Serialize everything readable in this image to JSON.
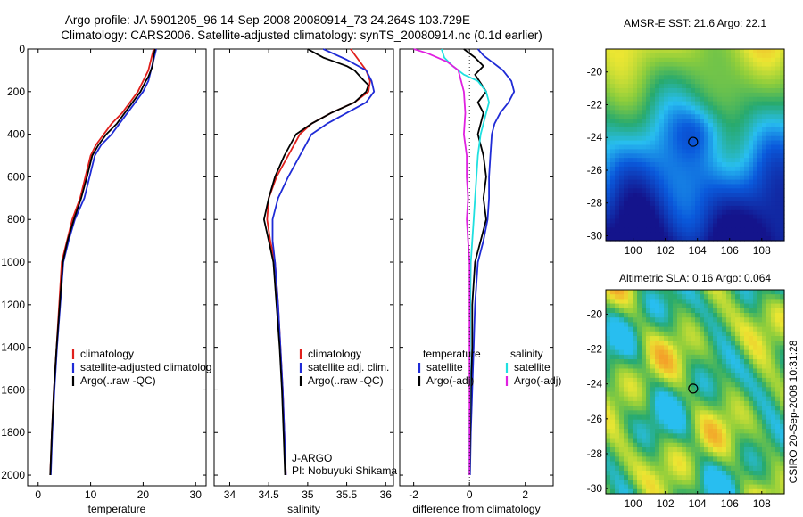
{
  "title": {
    "line1": "Argo profile: JA 5901205_96 14-Sep-2008 20080914_73 24.264S 103.729E",
    "line2": "Climatology: CARS2006. Satellite-adjusted climatology: synTS_20080914.nc (0.1d earlier)"
  },
  "side_label": "CSIRO 20-Sep-2008 10:31:28",
  "chart_data": [
    {
      "id": "temperature",
      "type": "line",
      "xlabel": "temperature",
      "ylabel": "",
      "xlim": [
        -2,
        32
      ],
      "ylim": [
        2050,
        0
      ],
      "xticks": [
        0,
        10,
        20,
        30
      ],
      "yticks": [
        0,
        200,
        400,
        600,
        800,
        1000,
        1200,
        1400,
        1600,
        1800,
        2000
      ],
      "legend": [
        "climatology",
        "satellite-adjusted climatolog",
        "Argo(..raw -QC)"
      ],
      "legend_colors": [
        "#e0201c",
        "#1f2bd6",
        "#000000"
      ],
      "series": [
        {
          "color": "#e0201c",
          "points": [
            [
              22,
              0
            ],
            [
              21.5,
              50
            ],
            [
              21,
              100
            ],
            [
              20,
              150
            ],
            [
              19,
              200
            ],
            [
              17.5,
              250
            ],
            [
              16,
              300
            ],
            [
              14,
              350
            ],
            [
              12.5,
              400
            ],
            [
              11,
              450
            ],
            [
              10,
              500
            ],
            [
              9,
              600
            ],
            [
              8,
              700
            ],
            [
              6.5,
              800
            ],
            [
              5.5,
              900
            ],
            [
              4.5,
              1000
            ],
            [
              4,
              1200
            ],
            [
              3.5,
              1400
            ],
            [
              3,
              1600
            ],
            [
              2.6,
              1800
            ],
            [
              2.3,
              2000
            ]
          ]
        },
        {
          "color": "#1f2bd6",
          "points": [
            [
              22.5,
              0
            ],
            [
              22,
              50
            ],
            [
              21.5,
              100
            ],
            [
              21,
              150
            ],
            [
              20,
              200
            ],
            [
              18.5,
              250
            ],
            [
              17,
              300
            ],
            [
              15.5,
              350
            ],
            [
              14,
              400
            ],
            [
              12,
              450
            ],
            [
              10.8,
              500
            ],
            [
              9.8,
              600
            ],
            [
              8.8,
              700
            ],
            [
              7,
              800
            ],
            [
              5.8,
              900
            ],
            [
              4.8,
              1000
            ],
            [
              4.2,
              1200
            ],
            [
              3.6,
              1400
            ],
            [
              3.1,
              1600
            ],
            [
              2.7,
              1800
            ],
            [
              2.4,
              2000
            ]
          ]
        },
        {
          "color": "#000000",
          "points": [
            [
              22.3,
              0
            ],
            [
              22,
              30
            ],
            [
              21.8,
              80
            ],
            [
              21,
              130
            ],
            [
              20.5,
              150
            ],
            [
              19.5,
              200
            ],
            [
              18,
              250
            ],
            [
              16.5,
              300
            ],
            [
              15,
              350
            ],
            [
              13,
              400
            ],
            [
              11.5,
              450
            ],
            [
              10.3,
              500
            ],
            [
              9.3,
              600
            ],
            [
              8.2,
              700
            ],
            [
              6.8,
              800
            ],
            [
              5.6,
              900
            ],
            [
              4.7,
              1000
            ],
            [
              4.1,
              1200
            ],
            [
              3.5,
              1400
            ],
            [
              3,
              1600
            ],
            [
              2.6,
              1800
            ],
            [
              2.3,
              2000
            ]
          ]
        }
      ]
    },
    {
      "id": "salinity",
      "type": "line",
      "xlabel": "salinity",
      "ylabel": "",
      "xlim": [
        33.8,
        36.1
      ],
      "ylim": [
        2050,
        0
      ],
      "xticks": [
        34,
        34.5,
        35,
        35.5,
        36
      ],
      "yticks": [
        0,
        200,
        400,
        600,
        800,
        1000,
        1200,
        1400,
        1600,
        1800,
        2000
      ],
      "legend": [
        "climatology",
        "satellite adj. clim.",
        "Argo(..raw -QC)"
      ],
      "legend_colors": [
        "#e0201c",
        "#1f2bd6",
        "#000000"
      ],
      "annotation": [
        "J-ARGO",
        "PI: Nobuyuki Shikama"
      ],
      "series": [
        {
          "color": "#e0201c",
          "points": [
            [
              35.55,
              0
            ],
            [
              35.65,
              50
            ],
            [
              35.75,
              100
            ],
            [
              35.8,
              150
            ],
            [
              35.78,
              200
            ],
            [
              35.6,
              250
            ],
            [
              35.3,
              300
            ],
            [
              35.05,
              350
            ],
            [
              34.9,
              400
            ],
            [
              34.75,
              500
            ],
            [
              34.6,
              600
            ],
            [
              34.5,
              700
            ],
            [
              34.48,
              800
            ],
            [
              34.52,
              900
            ],
            [
              34.58,
              1000
            ],
            [
              34.62,
              1200
            ],
            [
              34.65,
              1400
            ],
            [
              34.68,
              1600
            ],
            [
              34.7,
              1800
            ],
            [
              34.72,
              2000
            ]
          ]
        },
        {
          "color": "#1f2bd6",
          "points": [
            [
              35.2,
              0
            ],
            [
              35.5,
              50
            ],
            [
              35.75,
              100
            ],
            [
              35.82,
              150
            ],
            [
              35.85,
              200
            ],
            [
              35.75,
              250
            ],
            [
              35.5,
              300
            ],
            [
              35.25,
              350
            ],
            [
              35.05,
              400
            ],
            [
              34.9,
              500
            ],
            [
              34.75,
              600
            ],
            [
              34.62,
              700
            ],
            [
              34.55,
              800
            ],
            [
              34.55,
              900
            ],
            [
              34.58,
              1000
            ],
            [
              34.62,
              1200
            ],
            [
              34.65,
              1400
            ],
            [
              34.68,
              1600
            ],
            [
              34.7,
              1800
            ],
            [
              34.72,
              2000
            ]
          ]
        },
        {
          "color": "#000000",
          "points": [
            [
              35.0,
              0
            ],
            [
              35.1,
              20
            ],
            [
              35.2,
              40
            ],
            [
              35.35,
              60
            ],
            [
              35.5,
              80
            ],
            [
              35.6,
              100
            ],
            [
              35.7,
              140
            ],
            [
              35.78,
              170
            ],
            [
              35.75,
              200
            ],
            [
              35.6,
              250
            ],
            [
              35.3,
              300
            ],
            [
              35.05,
              350
            ],
            [
              34.85,
              400
            ],
            [
              34.7,
              500
            ],
            [
              34.58,
              600
            ],
            [
              34.5,
              700
            ],
            [
              34.44,
              800
            ],
            [
              34.5,
              900
            ],
            [
              34.56,
              1000
            ],
            [
              34.6,
              1200
            ],
            [
              34.64,
              1400
            ],
            [
              34.67,
              1600
            ],
            [
              34.69,
              1800
            ],
            [
              34.71,
              2000
            ]
          ]
        }
      ]
    },
    {
      "id": "difference",
      "type": "line",
      "xlabel": "difference from climatology",
      "ylabel": "",
      "xlim": [
        -2.5,
        3
      ],
      "ylim": [
        2050,
        0
      ],
      "xticks": [
        -2,
        0,
        2
      ],
      "yticks": [
        0,
        200,
        400,
        600,
        800,
        1000,
        1200,
        1400,
        1600,
        1800,
        2000
      ],
      "legend": [
        "temperature",
        "satellite",
        "Argo(-adj)",
        "salinity",
        "satellite",
        "Argo(-adj)"
      ],
      "legend_colors": [
        "",
        "#1f2bd6",
        "#000000",
        "",
        "#1fe0e0",
        "#e020e0"
      ],
      "series": [
        {
          "color": "#1f2bd6",
          "points": [
            [
              0.3,
              0
            ],
            [
              0.5,
              30
            ],
            [
              0.8,
              60
            ],
            [
              1.2,
              100
            ],
            [
              1.5,
              150
            ],
            [
              1.6,
              200
            ],
            [
              1.4,
              250
            ],
            [
              1.1,
              300
            ],
            [
              0.9,
              350
            ],
            [
              0.8,
              400
            ],
            [
              0.75,
              500
            ],
            [
              0.7,
              600
            ],
            [
              0.7,
              700
            ],
            [
              0.65,
              800
            ],
            [
              0.5,
              900
            ],
            [
              0.3,
              1000
            ],
            [
              0.2,
              1200
            ],
            [
              0.15,
              1400
            ],
            [
              0.1,
              1600
            ],
            [
              0.05,
              1800
            ],
            [
              0.02,
              2000
            ]
          ]
        },
        {
          "color": "#000000",
          "points": [
            [
              -0.2,
              0
            ],
            [
              0.2,
              40
            ],
            [
              0.5,
              80
            ],
            [
              0.2,
              120
            ],
            [
              0.4,
              160
            ],
            [
              0.6,
              200
            ],
            [
              0.3,
              250
            ],
            [
              0.5,
              300
            ],
            [
              0.4,
              350
            ],
            [
              0.3,
              400
            ],
            [
              0.5,
              500
            ],
            [
              0.6,
              600
            ],
            [
              0.5,
              700
            ],
            [
              0.6,
              800
            ],
            [
              0.4,
              900
            ],
            [
              0.2,
              1000
            ],
            [
              0.1,
              1200
            ],
            [
              0.1,
              1400
            ],
            [
              0.05,
              1600
            ],
            [
              0.03,
              1800
            ],
            [
              0.0,
              2000
            ]
          ]
        },
        {
          "color": "#1fe0e0",
          "points": [
            [
              -1.0,
              0
            ],
            [
              -0.9,
              40
            ],
            [
              -0.6,
              80
            ],
            [
              -0.2,
              120
            ],
            [
              0.3,
              150
            ],
            [
              0.6,
              200
            ],
            [
              0.7,
              250
            ],
            [
              0.6,
              300
            ],
            [
              0.5,
              350
            ],
            [
              0.4,
              400
            ],
            [
              0.3,
              500
            ],
            [
              0.25,
              600
            ],
            [
              0.2,
              700
            ],
            [
              0.15,
              800
            ],
            [
              0.1,
              900
            ],
            [
              0.05,
              1000
            ],
            [
              0.03,
              1200
            ],
            [
              0.02,
              1400
            ],
            [
              0.01,
              1600
            ],
            [
              0.0,
              1800
            ],
            [
              0.0,
              2000
            ]
          ]
        },
        {
          "color": "#e020e0",
          "points": [
            [
              -2.0,
              0
            ],
            [
              -1.5,
              20
            ],
            [
              -0.8,
              60
            ],
            [
              -0.4,
              100
            ],
            [
              -0.3,
              150
            ],
            [
              -0.2,
              200
            ],
            [
              -0.15,
              300
            ],
            [
              -0.2,
              400
            ],
            [
              -0.1,
              500
            ],
            [
              -0.1,
              600
            ],
            [
              -0.05,
              700
            ],
            [
              -0.1,
              800
            ],
            [
              -0.05,
              900
            ],
            [
              0.0,
              1000
            ],
            [
              0.0,
              1200
            ],
            [
              0.0,
              1400
            ],
            [
              0.0,
              1600
            ],
            [
              0.0,
              1800
            ],
            [
              0.0,
              2000
            ]
          ]
        }
      ]
    },
    {
      "id": "sst-map",
      "type": "heatmap",
      "title": "AMSR-E SST: 21.6 Argo: 22.1",
      "xlim": [
        98.3,
        109.4
      ],
      "ylim": [
        -30.3,
        -18.6
      ],
      "xticks": [
        100,
        102,
        104,
        106,
        108
      ],
      "yticks": [
        -20,
        -22,
        -24,
        -26,
        -28,
        -30
      ],
      "marker": [
        103.729,
        -24.264
      ]
    },
    {
      "id": "sla-map",
      "type": "heatmap",
      "title": "Altimetric SLA: 0.16 Argo: 0.064",
      "xlim": [
        98.3,
        109.4
      ],
      "ylim": [
        -30.3,
        -18.6
      ],
      "xticks": [
        100,
        102,
        104,
        106,
        108
      ],
      "yticks": [
        -20,
        -22,
        -24,
        -26,
        -28,
        -30
      ],
      "marker": [
        103.729,
        -24.264
      ]
    }
  ]
}
